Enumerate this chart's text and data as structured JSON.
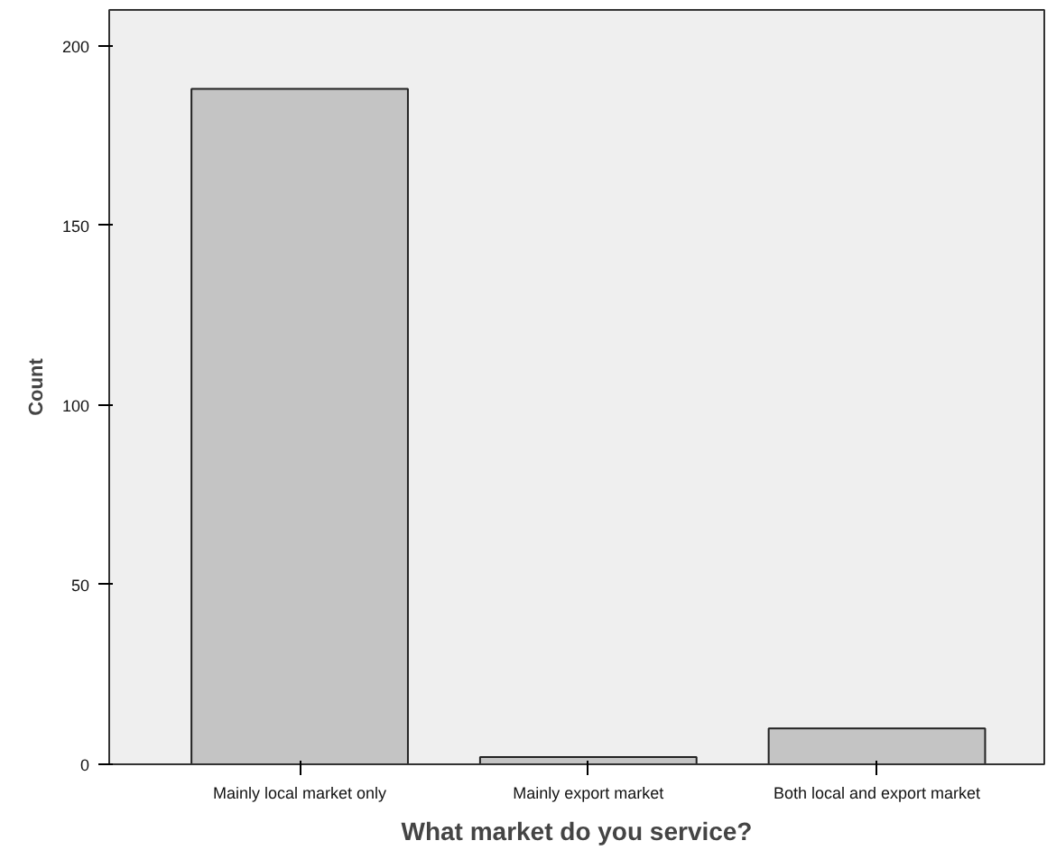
{
  "chart_data": {
    "type": "bar",
    "xlabel": "What market do you service?",
    "ylabel": "Count",
    "categories": [
      "Mainly local market only",
      "Mainly export market",
      "Both local and export market"
    ],
    "values": [
      188,
      2,
      10
    ],
    "color": "#c4c4c4",
    "ylim": [
      0,
      210
    ],
    "yticks": [
      0,
      50,
      100,
      150,
      200
    ],
    "grid": false
  }
}
